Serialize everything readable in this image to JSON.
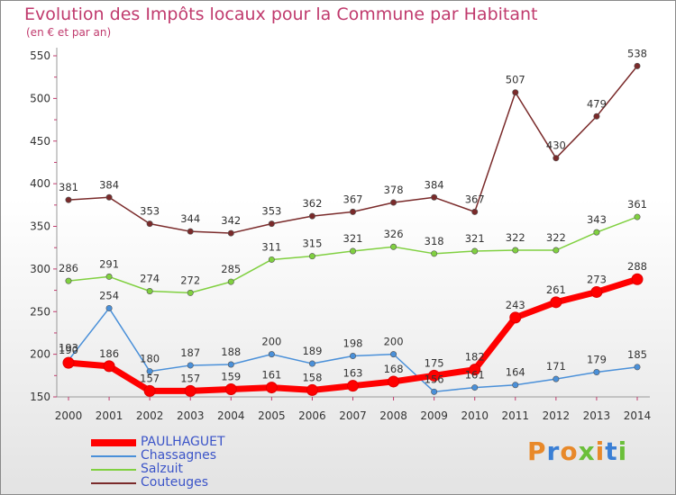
{
  "header": {
    "title": "Evolution des Impôts locaux pour la Commune par Habitant",
    "subtitle": "(en € et par an)"
  },
  "brand": {
    "text": "Proxiti",
    "colors": [
      "#e8892a",
      "#3a7fd5",
      "#e8892a",
      "#6bbf3a",
      "#e8892a",
      "#3a7fd5",
      "#6bbf3a"
    ]
  },
  "chart_data": {
    "type": "line",
    "title": "Evolution des Impôts locaux pour la Commune par Habitant",
    "subtitle": "(en € et par an)",
    "x": [
      "2000",
      "2001",
      "2002",
      "2003",
      "2004",
      "2005",
      "2006",
      "2007",
      "2008",
      "2009",
      "2010",
      "2011",
      "2012",
      "2013",
      "2014"
    ],
    "ylim": [
      150,
      550
    ],
    "yticks": [
      150,
      200,
      250,
      300,
      350,
      400,
      450,
      500,
      550
    ],
    "grid": false,
    "legend_position": "bottom-left",
    "series": [
      {
        "name": "PAULHAGUET",
        "color": "#ff0000",
        "values": [
          190,
          186,
          157,
          157,
          159,
          161,
          158,
          163,
          168,
          175,
          182,
          243,
          261,
          273,
          288
        ]
      },
      {
        "name": "Chassagnes",
        "color": "#4a90d9",
        "values": [
          193,
          254,
          180,
          187,
          188,
          200,
          189,
          198,
          200,
          156,
          161,
          164,
          171,
          179,
          185
        ]
      },
      {
        "name": "Salzuit",
        "color": "#80d040",
        "values": [
          286,
          291,
          274,
          272,
          285,
          311,
          315,
          321,
          326,
          318,
          321,
          322,
          322,
          343,
          361
        ]
      },
      {
        "name": "Couteuges",
        "color": "#7a2a2a",
        "values": [
          381,
          384,
          353,
          344,
          342,
          353,
          362,
          367,
          378,
          384,
          367,
          507,
          430,
          479,
          538
        ]
      }
    ]
  }
}
